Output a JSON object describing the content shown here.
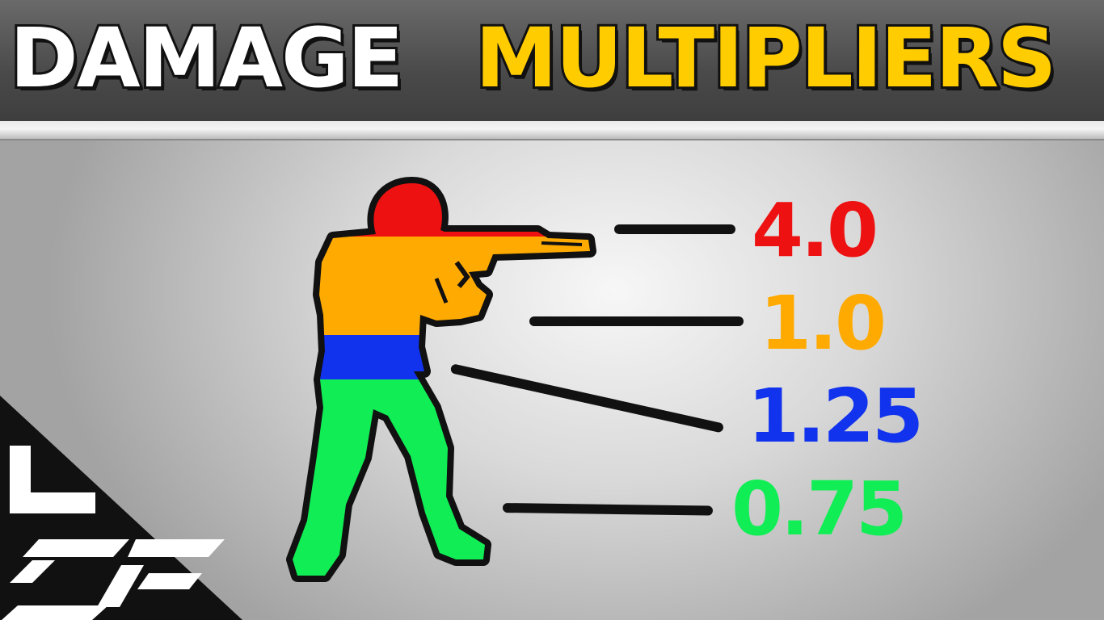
{
  "title": {
    "word1": "DAMAGE",
    "word2": "MULTIPLIERS"
  },
  "colors": {
    "title_word1": "#ffffff",
    "title_word2": "#ffcc00",
    "head": "#ee1111",
    "chest": "#ffaa00",
    "stomach": "#1133ee",
    "legs": "#11ee55"
  },
  "multipliers": [
    {
      "part": "head",
      "value": "4.0",
      "color": "#ee1111"
    },
    {
      "part": "chest",
      "value": "1.0",
      "color": "#ffaa00"
    },
    {
      "part": "stomach",
      "value": "1.25",
      "color": "#1133ee"
    },
    {
      "part": "legs",
      "value": "0.75",
      "color": "#11ee55"
    }
  ],
  "icons": {
    "figure": "soldier-silhouette-icon",
    "logo": "lsf-logo-icon"
  }
}
